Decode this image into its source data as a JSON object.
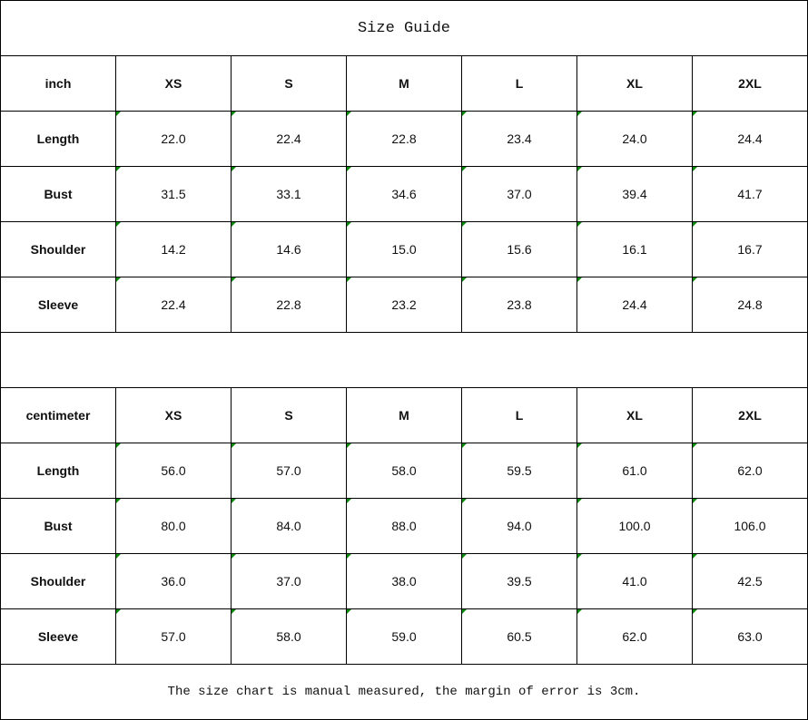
{
  "title": "Size Guide",
  "tables": [
    {
      "unit": "inch",
      "sizes": [
        "XS",
        "S",
        "M",
        "L",
        "XL",
        "2XL"
      ],
      "rows": [
        {
          "label": "Length",
          "values": [
            "22.0",
            "22.4",
            "22.8",
            "23.4",
            "24.0",
            "24.4"
          ]
        },
        {
          "label": "Bust",
          "values": [
            "31.5",
            "33.1",
            "34.6",
            "37.0",
            "39.4",
            "41.7"
          ]
        },
        {
          "label": "Shoulder",
          "values": [
            "14.2",
            "14.6",
            "15.0",
            "15.6",
            "16.1",
            "16.7"
          ]
        },
        {
          "label": "Sleeve",
          "values": [
            "22.4",
            "22.8",
            "23.2",
            "23.8",
            "24.4",
            "24.8"
          ]
        }
      ]
    },
    {
      "unit": "centimeter",
      "sizes": [
        "XS",
        "S",
        "M",
        "L",
        "XL",
        "2XL"
      ],
      "rows": [
        {
          "label": "Length",
          "values": [
            "56.0",
            "57.0",
            "58.0",
            "59.5",
            "61.0",
            "62.0"
          ]
        },
        {
          "label": "Bust",
          "values": [
            "80.0",
            "84.0",
            "88.0",
            "94.0",
            "100.0",
            "106.0"
          ]
        },
        {
          "label": "Shoulder",
          "values": [
            "36.0",
            "37.0",
            "38.0",
            "39.5",
            "41.0",
            "42.5"
          ]
        },
        {
          "label": "Sleeve",
          "values": [
            "57.0",
            "58.0",
            "59.0",
            "60.5",
            "62.0",
            "63.0"
          ]
        }
      ]
    }
  ],
  "note": "The size chart is manual measured, the margin of error is 3cm.",
  "colors": {
    "cell_marker": "#0a8a0a",
    "border": "#000000"
  }
}
